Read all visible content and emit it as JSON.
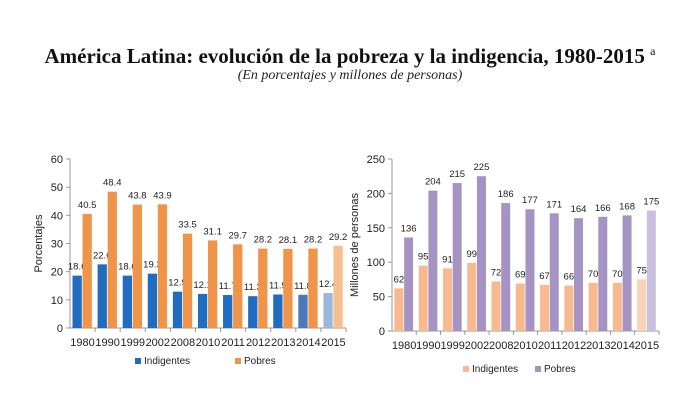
{
  "title": "América Latina: evolución de la pobreza y la indigencia, 1980-2015",
  "title_note": "a",
  "subtitle": "(En porcentajes y millones de personas)",
  "chart_data": [
    {
      "type": "bar",
      "categories": [
        "1980",
        "1990",
        "1999",
        "2002",
        "2008",
        "2010",
        "2011",
        "2012",
        "2013",
        "2014",
        "2015"
      ],
      "ylabel": "Porcentajes",
      "ylim": [
        0,
        60
      ],
      "yticks": [
        0,
        10,
        20,
        30,
        40,
        50,
        60
      ],
      "grid": false,
      "legend": "bottom",
      "series": [
        {
          "name": "Indigentes",
          "values": [
            18.6,
            22.6,
            18.6,
            19.3,
            12.9,
            12.1,
            11.7,
            11.3,
            11.9,
            11.8,
            12.4
          ],
          "color": "#1f6cc0",
          "colors": [
            "#1f6cc0",
            "#1f6cc0",
            "#1f6cc0",
            "#1f6cc0",
            "#1f6cc0",
            "#1f6cc0",
            "#1f6cc0",
            "#1f6cc0",
            "#1f6cc0",
            "#4a78b8",
            "#9bb8dc"
          ]
        },
        {
          "name": "Pobres",
          "values": [
            40.5,
            48.4,
            43.8,
            43.9,
            33.5,
            31.1,
            29.7,
            28.2,
            28.1,
            28.2,
            29.2
          ],
          "color": "#f0944a",
          "colors": [
            "#f0944a",
            "#f0944a",
            "#f0944a",
            "#f0944a",
            "#f0944a",
            "#f0944a",
            "#f0944a",
            "#f0944a",
            "#f0944a",
            "#f0944a",
            "#f6bf90"
          ]
        }
      ]
    },
    {
      "type": "bar",
      "categories": [
        "1980",
        "1990",
        "1999",
        "2002",
        "2008",
        "2010",
        "2011",
        "2012",
        "2013",
        "2014",
        "2015"
      ],
      "ylabel": "Millones de personas",
      "ylim": [
        0,
        250
      ],
      "yticks": [
        0,
        50,
        100,
        150,
        200,
        250
      ],
      "grid": false,
      "legend": "bottom",
      "series": [
        {
          "name": "Indigentes",
          "values": [
            62,
            95,
            91,
            99,
            72,
            69,
            67,
            66,
            70,
            70,
            75
          ],
          "color": "#f8b98e",
          "colors": [
            "#f8b98e",
            "#f8b98e",
            "#f8b98e",
            "#f8b98e",
            "#f8b98e",
            "#f8b98e",
            "#f8b98e",
            "#f8b98e",
            "#f8b98e",
            "#f8b98e",
            "#fbd3b8"
          ]
        },
        {
          "name": "Pobres",
          "values": [
            136,
            204,
            215,
            225,
            186,
            177,
            171,
            164,
            166,
            168,
            175
          ],
          "color": "#a593c3",
          "colors": [
            "#a593c3",
            "#a593c3",
            "#a593c3",
            "#a593c3",
            "#a593c3",
            "#a593c3",
            "#a593c3",
            "#a593c3",
            "#a593c3",
            "#a593c3",
            "#cbbfe0"
          ]
        }
      ]
    }
  ]
}
